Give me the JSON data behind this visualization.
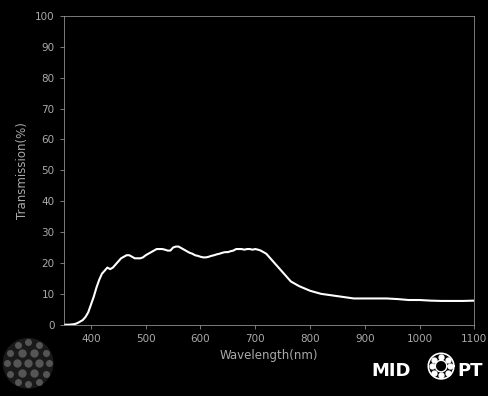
{
  "xlabel": "Wavelength(nm)",
  "ylabel": "Transmission(%)",
  "background_color": "#000000",
  "text_color": "#aaaaaa",
  "line_color": "#ffffff",
  "xlim": [
    350,
    1100
  ],
  "ylim": [
    0,
    100
  ],
  "xticks": [
    400,
    500,
    600,
    700,
    800,
    900,
    1000,
    1100
  ],
  "yticks": [
    0,
    10,
    20,
    30,
    40,
    50,
    60,
    70,
    80,
    90,
    100
  ],
  "wavelengths": [
    350,
    360,
    370,
    375,
    380,
    385,
    390,
    395,
    400,
    405,
    410,
    415,
    420,
    425,
    430,
    435,
    440,
    445,
    450,
    455,
    460,
    465,
    470,
    475,
    480,
    485,
    490,
    495,
    500,
    505,
    510,
    515,
    520,
    525,
    530,
    535,
    540,
    545,
    550,
    555,
    560,
    565,
    570,
    575,
    580,
    585,
    590,
    595,
    600,
    605,
    610,
    615,
    620,
    625,
    630,
    635,
    640,
    645,
    650,
    655,
    660,
    665,
    670,
    675,
    680,
    685,
    690,
    695,
    700,
    705,
    710,
    715,
    720,
    725,
    730,
    735,
    740,
    745,
    750,
    755,
    760,
    765,
    770,
    775,
    780,
    800,
    820,
    840,
    860,
    880,
    900,
    920,
    940,
    960,
    980,
    1000,
    1020,
    1040,
    1060,
    1080,
    1100
  ],
  "transmission": [
    0,
    0,
    0.2,
    0.5,
    1.0,
    1.5,
    2.5,
    4.0,
    6.5,
    9.0,
    12.0,
    14.5,
    16.5,
    17.5,
    18.5,
    18.0,
    18.5,
    19.5,
    20.5,
    21.5,
    22.0,
    22.5,
    22.5,
    22.0,
    21.5,
    21.5,
    21.5,
    21.8,
    22.5,
    23.0,
    23.5,
    24.0,
    24.5,
    24.5,
    24.5,
    24.3,
    24.0,
    24.0,
    25.0,
    25.3,
    25.3,
    24.8,
    24.3,
    23.8,
    23.3,
    23.0,
    22.5,
    22.3,
    22.0,
    21.8,
    21.8,
    22.0,
    22.3,
    22.5,
    22.8,
    23.0,
    23.3,
    23.5,
    23.5,
    23.8,
    24.0,
    24.5,
    24.5,
    24.5,
    24.3,
    24.5,
    24.5,
    24.3,
    24.5,
    24.3,
    24.0,
    23.5,
    23.0,
    22.0,
    21.0,
    20.0,
    19.0,
    18.0,
    17.0,
    16.0,
    15.0,
    14.0,
    13.5,
    13.0,
    12.5,
    11.0,
    10.0,
    9.5,
    9.0,
    8.5,
    8.5,
    8.5,
    8.5,
    8.3,
    8.0,
    8.0,
    7.8,
    7.7,
    7.7,
    7.7,
    7.8
  ],
  "midopt_text_color": "#ffffff",
  "midopt_fontsize": 13
}
